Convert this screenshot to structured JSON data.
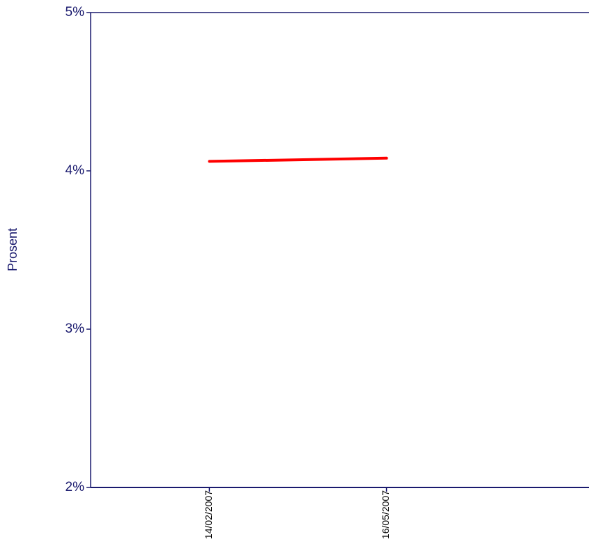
{
  "chart_data": {
    "type": "line",
    "title": "",
    "xlabel": "",
    "ylabel": "Prosent",
    "ylim": [
      2,
      5
    ],
    "y_ticks": [
      {
        "value": 5,
        "label": "5%"
      },
      {
        "value": 4,
        "label": "4%"
      },
      {
        "value": 3,
        "label": "3%"
      },
      {
        "value": 2,
        "label": "2%"
      }
    ],
    "x_ticks": [
      "14/02/2007",
      "16/05/2007"
    ],
    "x_range": [
      "2006-12-15",
      "2007-08-28"
    ],
    "series": [
      {
        "color": "#ff0000",
        "points": [
          {
            "x": "2007-02-14",
            "y": 4.06
          },
          {
            "x": "2007-05-16",
            "y": 4.08
          }
        ]
      }
    ],
    "grid": false,
    "axis_color": "#1a1a6e"
  }
}
